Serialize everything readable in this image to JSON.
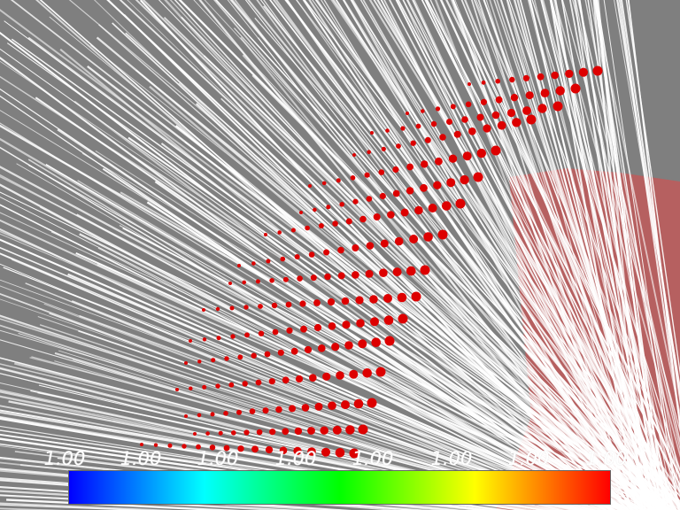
{
  "viewport": {
    "background": "#7f7f7f"
  },
  "scene": {
    "line_color": "#ffffff",
    "sphere_color": "#dd0000",
    "surface_color": "#c85555"
  },
  "scalar_bar": {
    "tick_labels": [
      "1.00",
      "1.00",
      "1.00",
      "1.00",
      "1.00",
      "1.00",
      "1.00",
      "1.00"
    ],
    "colormap": [
      "#0000ff",
      "#00ffff",
      "#00ff00",
      "#ffff00",
      "#ff0000"
    ]
  }
}
